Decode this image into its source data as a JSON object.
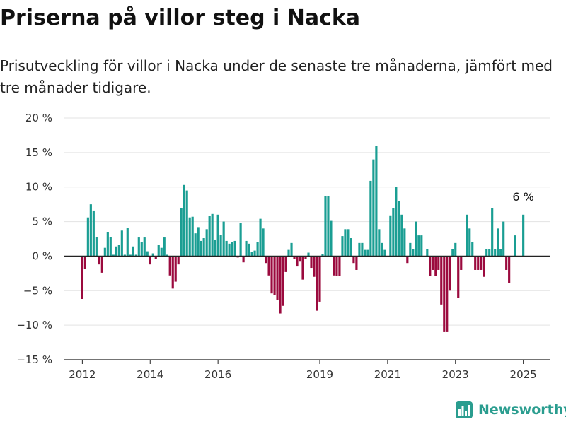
{
  "title": "Priserna på villor steg i Nacka",
  "subtitle": "Prisutveckling för villor i Nacka under de senaste tre månaderna, jämfört med tre månader tidigare.",
  "brand": {
    "name": "Newsworthy",
    "icon": "bar-chart-logo-icon"
  },
  "colors": {
    "positive": "#1a9e93",
    "negative": "#9b0a3e",
    "axis": "#222222",
    "grid": "#e3e3e3",
    "brand": "#2a9d8f"
  },
  "chart_data": {
    "type": "bar",
    "ylabel": "",
    "xlabel": "",
    "ylim": [
      -15,
      20
    ],
    "yticks": [
      20,
      15,
      10,
      5,
      0,
      -5,
      -10,
      -15
    ],
    "ytick_labels": [
      "20 %",
      "15 %",
      "10 %",
      "5 %",
      "0 %",
      "−5 %",
      "−10 %",
      "−15 %"
    ],
    "xtick_labels": [
      "2012",
      "2014",
      "2016",
      "2019",
      "2021",
      "2023",
      "2025"
    ],
    "xticks": [
      2012.0,
      2014.0,
      2016.0,
      2019.0,
      2021.0,
      2023.0,
      2025.0
    ],
    "x_range": [
      2011.45,
      2025.8
    ],
    "grid": true,
    "annotation": {
      "label": "6 %",
      "x": 2025.0,
      "y": 6
    },
    "bar_width_years": 0.066,
    "x": [
      2012.0,
      2012.083,
      2012.167,
      2012.25,
      2012.333,
      2012.417,
      2012.5,
      2012.583,
      2012.667,
      2012.75,
      2012.833,
      2012.917,
      2013.0,
      2013.083,
      2013.167,
      2013.25,
      2013.333,
      2013.417,
      2013.5,
      2013.583,
      2013.667,
      2013.75,
      2013.833,
      2013.917,
      2014.0,
      2014.083,
      2014.167,
      2014.25,
      2014.333,
      2014.417,
      2014.5,
      2014.583,
      2014.667,
      2014.75,
      2014.833,
      2014.917,
      2015.0,
      2015.083,
      2015.167,
      2015.25,
      2015.333,
      2015.417,
      2015.5,
      2015.583,
      2015.667,
      2015.75,
      2015.833,
      2015.917,
      2016.0,
      2016.083,
      2016.167,
      2016.25,
      2016.333,
      2016.417,
      2016.5,
      2016.583,
      2016.667,
      2016.75,
      2016.833,
      2016.917,
      2017.0,
      2017.083,
      2017.167,
      2017.25,
      2017.333,
      2017.417,
      2017.5,
      2017.583,
      2017.667,
      2017.75,
      2017.833,
      2017.917,
      2018.0,
      2018.083,
      2018.167,
      2018.25,
      2018.333,
      2018.417,
      2018.5,
      2018.583,
      2018.667,
      2018.75,
      2018.833,
      2018.917,
      2019.0,
      2019.083,
      2019.167,
      2019.25,
      2019.333,
      2019.417,
      2019.5,
      2019.583,
      2019.667,
      2019.75,
      2019.833,
      2019.917,
      2020.0,
      2020.083,
      2020.167,
      2020.25,
      2020.333,
      2020.417,
      2020.5,
      2020.583,
      2020.667,
      2020.75,
      2020.833,
      2020.917,
      2021.0,
      2021.083,
      2021.167,
      2021.25,
      2021.333,
      2021.417,
      2021.5,
      2021.583,
      2021.667,
      2021.75,
      2021.833,
      2021.917,
      2022.0,
      2022.083,
      2022.167,
      2022.25,
      2022.333,
      2022.417,
      2022.5,
      2022.583,
      2022.667,
      2022.75,
      2022.833,
      2022.917,
      2023.0,
      2023.083,
      2023.167,
      2023.25,
      2023.333,
      2023.417,
      2023.5,
      2023.583,
      2023.667,
      2023.75,
      2023.833,
      2023.917,
      2024.0,
      2024.083,
      2024.167,
      2024.25,
      2024.333,
      2024.417,
      2024.5,
      2024.583,
      2024.667,
      2024.75,
      2024.833,
      2024.917,
      2025.0
    ],
    "values": [
      -6.2,
      -1.8,
      5.6,
      7.5,
      6.6,
      2.8,
      -1.2,
      -2.4,
      1.2,
      3.5,
      2.8,
      0.2,
      1.4,
      1.6,
      3.7,
      0.2,
      4.1,
      0.2,
      1.4,
      0.2,
      2.7,
      2.0,
      2.7,
      0.7,
      -1.2,
      0.4,
      -0.4,
      1.6,
      1.2,
      2.7,
      0.2,
      -2.8,
      -4.7,
      -3.7,
      -1.2,
      6.9,
      10.3,
      9.5,
      5.6,
      5.7,
      3.3,
      4.2,
      2.2,
      2.6,
      3.9,
      5.8,
      6.1,
      2.4,
      6.0,
      3.1,
      5.0,
      2.2,
      1.8,
      2.0,
      2.2,
      -0.2,
      4.8,
      -0.9,
      2.2,
      1.8,
      0.6,
      0.8,
      2.0,
      5.4,
      4.0,
      -1.0,
      -2.8,
      -5.4,
      -5.6,
      -6.3,
      -8.3,
      -7.2,
      -2.3,
      0.9,
      1.9,
      -0.4,
      -1.5,
      -0.8,
      -3.4,
      -0.4,
      0.5,
      -1.7,
      -3.0,
      -7.9,
      -6.6,
      0.3,
      8.7,
      8.7,
      5.1,
      -2.8,
      -2.9,
      -2.9,
      2.9,
      3.9,
      3.9,
      2.6,
      -1.0,
      -2.0,
      1.9,
      1.9,
      0.9,
      0.9,
      10.9,
      14.0,
      16.0,
      3.9,
      1.9,
      0.9,
      -0.1,
      5.9,
      6.9,
      10.0,
      8.0,
      6.0,
      4.0,
      -1.0,
      1.9,
      1.0,
      5.0,
      3.0,
      3.0,
      -0.1,
      1.0,
      -2.9,
      -2.0,
      -2.9,
      -2.0,
      -7.0,
      -11.0,
      -11.0,
      -5.0,
      1.0,
      1.9,
      -6.0,
      -2.0,
      -0.1,
      6.0,
      4.0,
      2.0,
      -2.0,
      -2.0,
      -2.0,
      -3.0,
      1.0,
      1.0,
      6.9,
      1.0,
      4.0,
      1.0,
      5.0,
      -2.0,
      -3.9,
      -0.1,
      3.0,
      -0.1,
      -0.1,
      6.0
    ]
  }
}
